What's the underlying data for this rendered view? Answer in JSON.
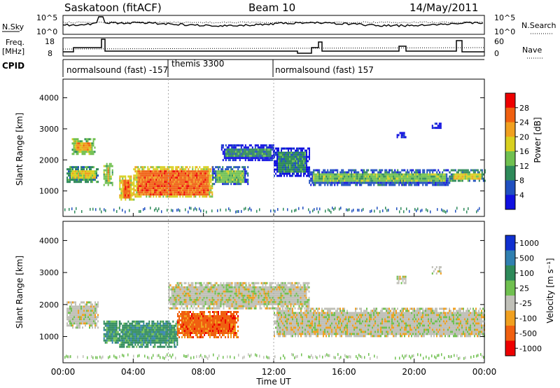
{
  "header": {
    "station": "Saskatoon (fitACF)",
    "beam": "Beam 10",
    "date": "14/May/2011"
  },
  "top_panels": {
    "nsky_label": "N.Sky",
    "nsky_ticks": [
      "10^5",
      "10^0"
    ],
    "nsearch_label": "N.Search",
    "nsearch_ticks": [
      "10^5",
      "10^0"
    ],
    "freq_label_1": "Freq.",
    "freq_label_2": "[MHz]",
    "freq_ticks": [
      "18",
      "8"
    ],
    "nave_label": "Nave",
    "nave_ticks": [
      "60",
      "0"
    ],
    "cpid_label": "CPID",
    "cpid_segments": [
      {
        "label": "normalsound (fast) -157",
        "start_hour": 0
      },
      {
        "label": "themis 3300",
        "start_hour": 6
      },
      {
        "label": "normalsound (fast) 157",
        "start_hour": 12
      }
    ]
  },
  "x_axis": {
    "label": "Time UT",
    "ticks": [
      "00:00",
      "04:00",
      "08:00",
      "12:00",
      "16:00",
      "20:00",
      "00:00"
    ],
    "range_hours": [
      0,
      24
    ]
  },
  "power_panel": {
    "ylabel": "Slant Range [km]",
    "yticks": [
      "1000",
      "2000",
      "3000",
      "4000"
    ],
    "colorbar_label": "Power [dB]",
    "colorbar_ticks": [
      "4",
      "8",
      "12",
      "16",
      "20",
      "24",
      "28"
    ],
    "colors": [
      "#1010e0",
      "#2050c0",
      "#2e8a5a",
      "#70c050",
      "#d8d020",
      "#f0a020",
      "#f06010",
      "#ee0000"
    ]
  },
  "velocity_panel": {
    "ylabel": "Slant Range [km]",
    "yticks": [
      "1000",
      "2000",
      "3000",
      "4000"
    ],
    "colorbar_label": "Velocity [m s⁻¹]",
    "colorbar_ticks": [
      "1000",
      "500",
      "100",
      "25",
      "-25",
      "-100",
      "-500",
      "-1000"
    ],
    "colors": [
      "#1030d0",
      "#3080b0",
      "#2e8a5a",
      "#70c050",
      "#c0c0b8",
      "#f0a020",
      "#f06010",
      "#ee0000"
    ]
  },
  "chart_data": {
    "type": "heatmap",
    "x_unit": "hours UT",
    "y_unit": "km",
    "xlim": [
      0,
      24
    ],
    "ylim": [
      180,
      4600
    ],
    "power_regions": [
      {
        "x": [
          0.2,
          2.0
        ],
        "y": [
          1300,
          1800
        ],
        "value": 20
      },
      {
        "x": [
          0.5,
          1.8
        ],
        "y": [
          2200,
          2700
        ],
        "value": 24
      },
      {
        "x": [
          2.3,
          2.8
        ],
        "y": [
          1200,
          1900
        ],
        "value": 24
      },
      {
        "x": [
          3.2,
          4.0
        ],
        "y": [
          700,
          1500
        ],
        "value": 28
      },
      {
        "x": [
          4.0,
          8.5
        ],
        "y": [
          800,
          1800
        ],
        "value": 28
      },
      {
        "x": [
          8.5,
          10.5
        ],
        "y": [
          1200,
          1800
        ],
        "value": 16
      },
      {
        "x": [
          9.0,
          12.0
        ],
        "y": [
          2000,
          2500
        ],
        "value": 12
      },
      {
        "x": [
          12.0,
          14.0
        ],
        "y": [
          1500,
          2400
        ],
        "value": 12
      },
      {
        "x": [
          14.0,
          22.0
        ],
        "y": [
          1200,
          1700
        ],
        "value": 16
      },
      {
        "x": [
          22.0,
          24.0
        ],
        "y": [
          1300,
          1700
        ],
        "value": 20
      },
      {
        "x": [
          19.0,
          19.5
        ],
        "y": [
          2700,
          2900
        ],
        "value": 12
      },
      {
        "x": [
          21.0,
          21.5
        ],
        "y": [
          3000,
          3200
        ],
        "value": 12
      }
    ],
    "velocity_regions": [
      {
        "x": [
          0.2,
          2.0
        ],
        "y": [
          1300,
          2100
        ],
        "value": 0
      },
      {
        "x": [
          2.3,
          3.2
        ],
        "y": [
          800,
          1500
        ],
        "value": 100
      },
      {
        "x": [
          3.2,
          6.5
        ],
        "y": [
          700,
          1500
        ],
        "value": 100
      },
      {
        "x": [
          6.5,
          10.0
        ],
        "y": [
          1000,
          1800
        ],
        "value": -500
      },
      {
        "x": [
          6.0,
          14.0
        ],
        "y": [
          1900,
          2700
        ],
        "value": 0
      },
      {
        "x": [
          12.0,
          24.0
        ],
        "y": [
          1000,
          1900
        ],
        "value": 0
      },
      {
        "x": [
          19.0,
          19.5
        ],
        "y": [
          2700,
          2900
        ],
        "value": 0
      },
      {
        "x": [
          21.0,
          21.5
        ],
        "y": [
          3000,
          3200
        ],
        "value": 0
      }
    ]
  }
}
